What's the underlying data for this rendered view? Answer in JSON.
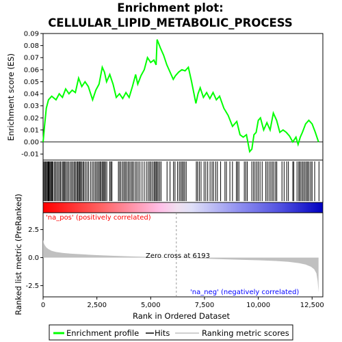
{
  "chart_data": {
    "type": "line",
    "title_line1": "Enrichment plot:",
    "title_line2": "CELLULAR_LIPID_METABOLIC_PROCESS",
    "xlabel": "Rank in Ordered Dataset",
    "ylabel_top": "Enrichment score (ES)",
    "ylabel_bottom": "Ranked list metric (PreRanked)",
    "xlim": [
      0,
      13000
    ],
    "x_ticks": [
      0,
      2500,
      5000,
      7500,
      10000,
      12500
    ],
    "x_tick_labels": [
      "0",
      "2,500",
      "5,000",
      "7,500",
      "10,000",
      "12,500"
    ],
    "es_ylim": [
      -0.015,
      0.09
    ],
    "es_ticks": [
      -0.01,
      0.0,
      0.01,
      0.02,
      0.03,
      0.04,
      0.05,
      0.06,
      0.07,
      0.08,
      0.09
    ],
    "es_tick_labels": [
      "-0.01",
      "0.00",
      "0.01",
      "0.02",
      "0.03",
      "0.04",
      "0.05",
      "0.06",
      "0.07",
      "0.08",
      "0.09"
    ],
    "metric_ylim": [
      -3.5,
      4.0
    ],
    "metric_ticks": [
      -2.5,
      0.0,
      2.5
    ],
    "metric_tick_labels": [
      "-2.5",
      "0.0",
      "2.5"
    ],
    "zero_cross_rank": 6193,
    "zero_cross_label": "Zero cross at 6193",
    "pos_label": "'na_pos' (positively correlated)",
    "neg_label": "'na_neg' (negatively correlated)",
    "colors": {
      "es_line": "#00ff00",
      "hits": "#000000",
      "metric_fill": "#c0c0c0",
      "pos_label": "#ff0000",
      "neg_label": "#0000ff",
      "zero_line": "#808080"
    },
    "legend": [
      {
        "label": "Enrichment profile",
        "kind": "es-line"
      },
      {
        "label": "Hits",
        "kind": "hit-line"
      },
      {
        "label": "Ranking metric scores",
        "kind": "metric-line"
      }
    ],
    "es_profile": {
      "x": [
        0,
        60,
        150,
        250,
        400,
        600,
        750,
        900,
        1050,
        1200,
        1350,
        1500,
        1650,
        1800,
        1950,
        2100,
        2300,
        2450,
        2600,
        2750,
        2850,
        2950,
        3100,
        3250,
        3400,
        3550,
        3700,
        3850,
        4000,
        4150,
        4300,
        4400,
        4550,
        4700,
        4850,
        5000,
        5150,
        5250,
        5300,
        5450,
        5600,
        5750,
        5900,
        6050,
        6150,
        6300,
        6450,
        6600,
        6750,
        6900,
        7100,
        7200,
        7300,
        7450,
        7600,
        7750,
        7900,
        8050,
        8200,
        8400,
        8600,
        8800,
        9000,
        9150,
        9300,
        9450,
        9600,
        9700,
        9800,
        9900,
        10000,
        10100,
        10250,
        10400,
        10550,
        10700,
        10850,
        11000,
        11150,
        11300,
        11450,
        11600,
        11750,
        11850,
        11950,
        12050,
        12200,
        12350,
        12500,
        12650,
        12800
      ],
      "es": [
        0.0,
        0.012,
        0.028,
        0.035,
        0.038,
        0.035,
        0.04,
        0.037,
        0.044,
        0.04,
        0.043,
        0.041,
        0.053,
        0.046,
        0.05,
        0.046,
        0.035,
        0.043,
        0.048,
        0.062,
        0.058,
        0.05,
        0.056,
        0.048,
        0.037,
        0.04,
        0.036,
        0.041,
        0.037,
        0.046,
        0.056,
        0.048,
        0.055,
        0.06,
        0.07,
        0.066,
        0.068,
        0.064,
        0.085,
        0.078,
        0.072,
        0.064,
        0.058,
        0.052,
        0.055,
        0.058,
        0.06,
        0.059,
        0.062,
        0.05,
        0.032,
        0.04,
        0.045,
        0.037,
        0.041,
        0.036,
        0.041,
        0.035,
        0.038,
        0.028,
        0.022,
        0.013,
        0.017,
        0.006,
        0.004,
        0.006,
        -0.008,
        -0.006,
        0.006,
        0.008,
        0.018,
        0.02,
        0.01,
        0.016,
        0.01,
        0.024,
        0.018,
        0.008,
        0.01,
        0.008,
        0.005,
        0.0,
        0.004,
        -0.002,
        0.004,
        0.008,
        0.015,
        0.018,
        0.015,
        0.008,
        0.0
      ]
    },
    "hits": [
      30,
      80,
      120,
      160,
      200,
      240,
      270,
      310,
      350,
      390,
      420,
      460,
      530,
      580,
      640,
      700,
      760,
      810,
      880,
      930,
      980,
      1020,
      1080,
      1140,
      1200,
      1270,
      1330,
      1390,
      1450,
      1500,
      1560,
      1610,
      1650,
      1700,
      1740,
      1790,
      1850,
      1900,
      1970,
      2040,
      2110,
      2200,
      2280,
      2350,
      2420,
      2480,
      2540,
      2600,
      2650,
      2700,
      2760,
      2800,
      2850,
      2900,
      2960,
      3100,
      3150,
      3200,
      3500,
      3560,
      3620,
      3700,
      3760,
      3820,
      3880,
      3950,
      4010,
      4080,
      4140,
      4200,
      4280,
      4350,
      4420,
      4500,
      4600,
      4700,
      4800,
      4880,
      4950,
      5010,
      5080,
      5150,
      5200,
      5250,
      5300,
      5350,
      5420,
      5480,
      5760,
      5900,
      6060,
      6130,
      6250,
      6330,
      6400,
      6460,
      6520,
      6580,
      6650,
      7120,
      7180,
      7260,
      7340,
      7480,
      7560,
      7650,
      7760,
      7850,
      7920,
      8020,
      8100,
      8250,
      8450,
      8520,
      8680,
      8800,
      8980,
      9040,
      9100,
      9350,
      9420,
      9490,
      9700,
      9780,
      9850,
      9930,
      10000,
      10080,
      10180,
      10350,
      10420,
      10500,
      10580,
      10650,
      10720,
      10800,
      10860,
      11100,
      11200,
      11320,
      11400,
      11600,
      11650,
      11800,
      11880,
      11930,
      11990,
      12060,
      12120,
      12180,
      12250,
      12300,
      12360,
      12440,
      12500,
      12620,
      12820
    ],
    "metric": {
      "x": [
        0,
        30,
        80,
        150,
        250,
        400,
        600,
        900,
        1300,
        1800,
        2500,
        3300,
        4200,
        5100,
        6193,
        7000,
        8000,
        9000,
        10000,
        10800,
        11400,
        11900,
        12200,
        12450,
        12600,
        12700,
        12760,
        12800
      ],
      "y": [
        1.6,
        1.3,
        1.1,
        0.9,
        0.75,
        0.6,
        0.5,
        0.42,
        0.35,
        0.29,
        0.22,
        0.16,
        0.1,
        0.05,
        0.0,
        -0.06,
        -0.12,
        -0.18,
        -0.24,
        -0.3,
        -0.38,
        -0.5,
        -0.62,
        -0.82,
        -1.05,
        -1.4,
        -2.1,
        -3.1
      ]
    }
  }
}
